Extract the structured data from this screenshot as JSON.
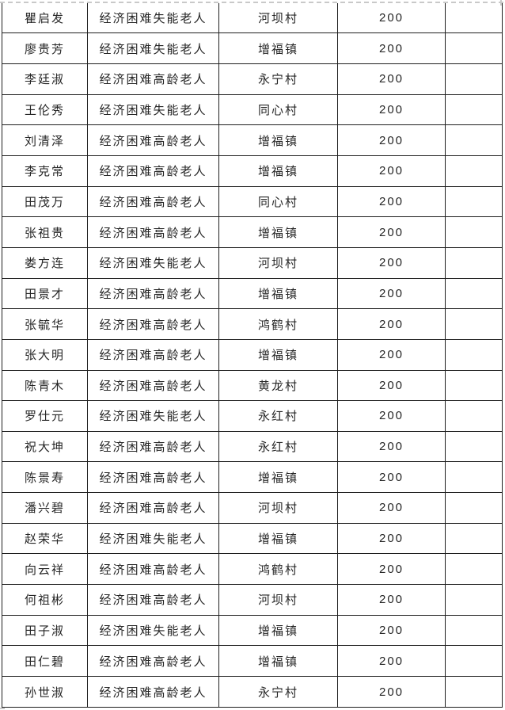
{
  "page": {
    "background_color": "#ffffff",
    "border_color": "#1f1f1f",
    "text_color": "#262626",
    "page_break_color": "#c9c9c9"
  },
  "table": {
    "rows": [
      [
        "瞿启发",
        "经济困难失能老人",
        "河坝村",
        "200",
        ""
      ],
      [
        "廖贵芳",
        "经济困难失能老人",
        "增福镇",
        "200",
        ""
      ],
      [
        "李廷淑",
        "经济困难高龄老人",
        "永宁村",
        "200",
        ""
      ],
      [
        "王伦秀",
        "经济困难失能老人",
        "同心村",
        "200",
        ""
      ],
      [
        "刘清泽",
        "经济困难高龄老人",
        "增福镇",
        "200",
        ""
      ],
      [
        "李克常",
        "经济困难高龄老人",
        "增福镇",
        "200",
        ""
      ],
      [
        "田茂万",
        "经济困难高龄老人",
        "同心村",
        "200",
        ""
      ],
      [
        "张祖贵",
        "经济困难高龄老人",
        "增福镇",
        "200",
        ""
      ],
      [
        "娄方连",
        "经济困难失能老人",
        "河坝村",
        "200",
        ""
      ],
      [
        "田景才",
        "经济困难高龄老人",
        "增福镇",
        "200",
        ""
      ],
      [
        "张毓华",
        "经济困难高龄老人",
        "鸿鹤村",
        "200",
        ""
      ],
      [
        "张大明",
        "经济困难高龄老人",
        "增福镇",
        "200",
        ""
      ],
      [
        "陈青木",
        "经济困难高龄老人",
        "黄龙村",
        "200",
        ""
      ],
      [
        "罗仕元",
        "经济困难失能老人",
        "永红村",
        "200",
        ""
      ],
      [
        "祝大坤",
        "经济困难高龄老人",
        "永红村",
        "200",
        ""
      ],
      [
        "陈景寿",
        "经济困难高龄老人",
        "增福镇",
        "200",
        ""
      ],
      [
        "潘兴碧",
        "经济困难高龄老人",
        "河坝村",
        "200",
        ""
      ],
      [
        "赵荣华",
        "经济困难失能老人",
        "增福镇",
        "200",
        ""
      ],
      [
        "向云祥",
        "经济困难高龄老人",
        "鸿鹤村",
        "200",
        ""
      ],
      [
        "何祖彬",
        "经济困难高龄老人",
        "河坝村",
        "200",
        ""
      ],
      [
        "田子淑",
        "经济困难失能老人",
        "增福镇",
        "200",
        ""
      ],
      [
        "田仁碧",
        "经济困难高龄老人",
        "增福镇",
        "200",
        ""
      ],
      [
        "孙世淑",
        "经济困难高龄老人",
        "永宁村",
        "200",
        ""
      ]
    ]
  }
}
